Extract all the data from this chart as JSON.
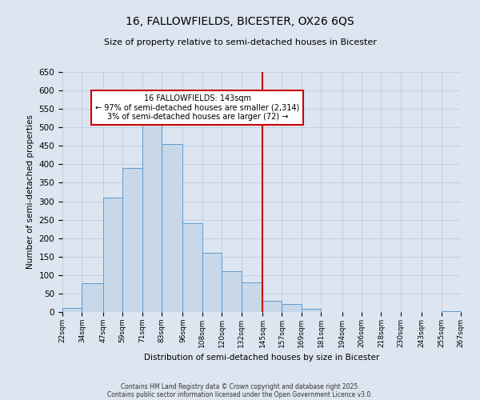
{
  "title": "16, FALLOWFIELDS, BICESTER, OX26 6QS",
  "subtitle": "Size of property relative to semi-detached houses in Bicester",
  "xlabel": "Distribution of semi-detached houses by size in Bicester",
  "ylabel": "Number of semi-detached properties",
  "bar_edges": [
    22,
    34,
    47,
    59,
    71,
    83,
    96,
    108,
    120,
    132,
    145,
    157,
    169,
    181,
    194,
    206,
    218,
    230,
    243,
    255,
    267
  ],
  "bar_heights": [
    10,
    78,
    310,
    390,
    530,
    455,
    240,
    160,
    110,
    80,
    30,
    22,
    8,
    0,
    0,
    0,
    0,
    0,
    0,
    2
  ],
  "bar_color": "#c8d8e8",
  "bar_edge_color": "#5b9bd5",
  "ylim": [
    0,
    650
  ],
  "yticks": [
    0,
    50,
    100,
    150,
    200,
    250,
    300,
    350,
    400,
    450,
    500,
    550,
    600,
    650
  ],
  "vline_x": 145,
  "vline_color": "#cc0000",
  "annotation_text": "16 FALLOWFIELDS: 143sqm\n← 97% of semi-detached houses are smaller (2,314)\n3% of semi-detached houses are larger (72) →",
  "annotation_box_color": "#ffffff",
  "annotation_box_edge_color": "#cc0000",
  "footer_line1": "Contains HM Land Registry data © Crown copyright and database right 2025.",
  "footer_line2": "Contains public sector information licensed under the Open Government Licence v3.0.",
  "background_color": "#dde5f0",
  "tick_labels": [
    "22sqm",
    "34sqm",
    "47sqm",
    "59sqm",
    "71sqm",
    "83sqm",
    "96sqm",
    "108sqm",
    "120sqm",
    "132sqm",
    "145sqm",
    "157sqm",
    "169sqm",
    "181sqm",
    "194sqm",
    "206sqm",
    "218sqm",
    "230sqm",
    "243sqm",
    "255sqm",
    "267sqm"
  ]
}
